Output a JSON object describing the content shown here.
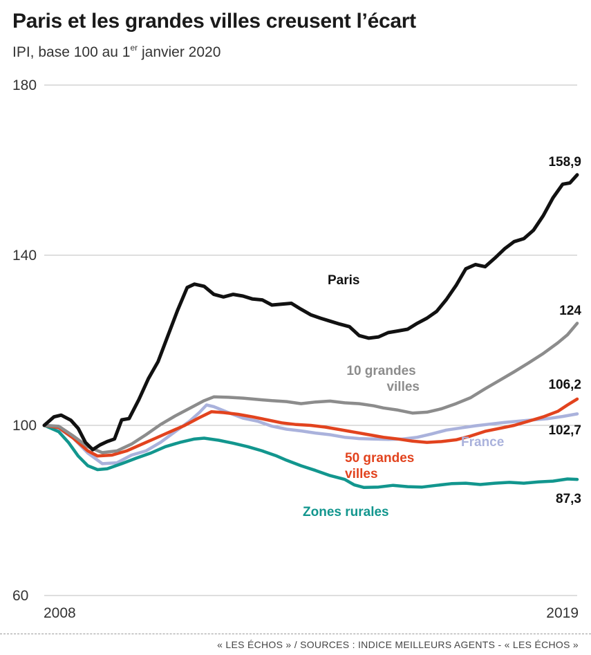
{
  "title": "Paris et les grandes villes creusent l’écart",
  "subtitle": {
    "main": "IPI, base 100 au 1",
    "sup": "er",
    "rest": " janvier 2020"
  },
  "source": "« LES ÉCHOS » / SOURCES : INDICE MEILLEURS AGENTS - « LES ÉCHOS »",
  "chart_data": {
    "type": "line",
    "title": "Paris et les grandes villes creusent l’écart",
    "ylabel": "IPI, base 100",
    "xlabel": "",
    "ylim": [
      60,
      180
    ],
    "yticks": [
      "60",
      "100",
      "140",
      "180"
    ],
    "xlim": [
      2008,
      2019
    ],
    "xticks": [
      "2008",
      "2019"
    ],
    "grid": true,
    "colors": {
      "paris": "#111111",
      "dix": "#8c8c8c",
      "cinquante": "#e2431e",
      "france": "#aab2dc",
      "rurales": "#12968e"
    },
    "series": [
      {
        "id": "france",
        "name": "France",
        "end_label": "102,7",
        "points": [
          [
            2008,
            100
          ],
          [
            2008.3,
            99.3
          ],
          [
            2008.6,
            97
          ],
          [
            2008.9,
            93.5
          ],
          [
            2009.2,
            91
          ],
          [
            2009.5,
            91.2
          ],
          [
            2009.8,
            93
          ],
          [
            2010.1,
            94
          ],
          [
            2010.4,
            96
          ],
          [
            2010.7,
            98.5
          ],
          [
            2011.0,
            101
          ],
          [
            2011.2,
            103
          ],
          [
            2011.35,
            104.8
          ],
          [
            2011.5,
            104.4
          ],
          [
            2011.8,
            103
          ],
          [
            2012.1,
            101.7
          ],
          [
            2012.4,
            101
          ],
          [
            2012.7,
            99.8
          ],
          [
            2013.0,
            99.1
          ],
          [
            2013.3,
            98.7
          ],
          [
            2013.6,
            98.2
          ],
          [
            2013.9,
            97.8
          ],
          [
            2014.2,
            97.2
          ],
          [
            2014.5,
            96.9
          ],
          [
            2014.8,
            96.8
          ],
          [
            2015.1,
            96.7
          ],
          [
            2015.4,
            96.8
          ],
          [
            2015.7,
            97.2
          ],
          [
            2016.0,
            98
          ],
          [
            2016.3,
            98.9
          ],
          [
            2016.6,
            99.4
          ],
          [
            2016.9,
            99.9
          ],
          [
            2017.2,
            100.3
          ],
          [
            2017.5,
            100.7
          ],
          [
            2017.8,
            101
          ],
          [
            2018.1,
            101.3
          ],
          [
            2018.4,
            101.6
          ],
          [
            2018.7,
            102.1
          ],
          [
            2019,
            102.7
          ]
        ]
      },
      {
        "id": "rurales",
        "name": "Zones rurales",
        "end_label": "87,3",
        "points": [
          [
            2008,
            100
          ],
          [
            2008.3,
            98.5
          ],
          [
            2008.5,
            96
          ],
          [
            2008.7,
            92.8
          ],
          [
            2008.9,
            90.5
          ],
          [
            2009.1,
            89.6
          ],
          [
            2009.3,
            89.8
          ],
          [
            2009.6,
            91
          ],
          [
            2009.9,
            92.3
          ],
          [
            2010.2,
            93.5
          ],
          [
            2010.5,
            95
          ],
          [
            2010.8,
            96
          ],
          [
            2011.1,
            96.8
          ],
          [
            2011.3,
            97
          ],
          [
            2011.6,
            96.5
          ],
          [
            2011.9,
            95.8
          ],
          [
            2012.2,
            95
          ],
          [
            2012.5,
            94
          ],
          [
            2012.8,
            92.8
          ],
          [
            2013.0,
            91.8
          ],
          [
            2013.3,
            90.5
          ],
          [
            2013.6,
            89.4
          ],
          [
            2013.9,
            88.2
          ],
          [
            2014.2,
            87.3
          ],
          [
            2014.4,
            86
          ],
          [
            2014.6,
            85.4
          ],
          [
            2014.9,
            85.5
          ],
          [
            2015.2,
            85.9
          ],
          [
            2015.5,
            85.6
          ],
          [
            2015.8,
            85.5
          ],
          [
            2016.1,
            85.9
          ],
          [
            2016.4,
            86.3
          ],
          [
            2016.7,
            86.4
          ],
          [
            2017.0,
            86.1
          ],
          [
            2017.3,
            86.4
          ],
          [
            2017.6,
            86.6
          ],
          [
            2017.9,
            86.4
          ],
          [
            2018.2,
            86.7
          ],
          [
            2018.5,
            86.9
          ],
          [
            2018.8,
            87.4
          ],
          [
            2019,
            87.3
          ]
        ]
      },
      {
        "id": "cinquante",
        "name": "50 grandes villes",
        "end_label": "106,2",
        "points": [
          [
            2008,
            100
          ],
          [
            2008.3,
            99.5
          ],
          [
            2008.6,
            97
          ],
          [
            2008.9,
            94
          ],
          [
            2009.1,
            92.8
          ],
          [
            2009.4,
            93
          ],
          [
            2009.7,
            94
          ],
          [
            2010.0,
            95.5
          ],
          [
            2010.3,
            97
          ],
          [
            2010.6,
            98.5
          ],
          [
            2010.9,
            100
          ],
          [
            2011.2,
            101.8
          ],
          [
            2011.45,
            103.2
          ],
          [
            2011.7,
            103
          ],
          [
            2012.0,
            102.6
          ],
          [
            2012.3,
            102
          ],
          [
            2012.6,
            101.3
          ],
          [
            2012.9,
            100.6
          ],
          [
            2013.2,
            100.2
          ],
          [
            2013.5,
            100
          ],
          [
            2013.8,
            99.6
          ],
          [
            2014.1,
            99
          ],
          [
            2014.4,
            98.4
          ],
          [
            2014.7,
            97.8
          ],
          [
            2015.0,
            97.2
          ],
          [
            2015.3,
            96.8
          ],
          [
            2015.6,
            96.3
          ],
          [
            2015.9,
            96
          ],
          [
            2016.2,
            96.2
          ],
          [
            2016.5,
            96.6
          ],
          [
            2016.8,
            97.5
          ],
          [
            2017.1,
            98.6
          ],
          [
            2017.4,
            99.3
          ],
          [
            2017.7,
            100
          ],
          [
            2018.0,
            101
          ],
          [
            2018.3,
            102
          ],
          [
            2018.6,
            103.3
          ],
          [
            2018.8,
            104.8
          ],
          [
            2019,
            106.2
          ]
        ]
      },
      {
        "id": "dix",
        "name": "10 grandes villes",
        "end_label": "124",
        "points": [
          [
            2008,
            100
          ],
          [
            2008.3,
            99.8
          ],
          [
            2008.6,
            97.5
          ],
          [
            2008.9,
            95
          ],
          [
            2009.2,
            93.6
          ],
          [
            2009.5,
            94
          ],
          [
            2009.8,
            95.6
          ],
          [
            2010.1,
            97.8
          ],
          [
            2010.4,
            100.2
          ],
          [
            2010.7,
            102.2
          ],
          [
            2011.0,
            104
          ],
          [
            2011.3,
            105.8
          ],
          [
            2011.5,
            106.7
          ],
          [
            2011.8,
            106.6
          ],
          [
            2012.1,
            106.4
          ],
          [
            2012.4,
            106.1
          ],
          [
            2012.7,
            105.8
          ],
          [
            2013.0,
            105.6
          ],
          [
            2013.3,
            105.1
          ],
          [
            2013.6,
            105.5
          ],
          [
            2013.9,
            105.7
          ],
          [
            2014.2,
            105.3
          ],
          [
            2014.5,
            105.1
          ],
          [
            2014.8,
            104.6
          ],
          [
            2015.0,
            104.1
          ],
          [
            2015.3,
            103.6
          ],
          [
            2015.6,
            102.9
          ],
          [
            2015.9,
            103.1
          ],
          [
            2016.2,
            103.9
          ],
          [
            2016.5,
            105.1
          ],
          [
            2016.8,
            106.5
          ],
          [
            2017.1,
            108.6
          ],
          [
            2017.4,
            110.6
          ],
          [
            2017.7,
            112.6
          ],
          [
            2018.0,
            114.7
          ],
          [
            2018.3,
            116.9
          ],
          [
            2018.6,
            119.4
          ],
          [
            2018.8,
            121.3
          ],
          [
            2019,
            124
          ]
        ]
      },
      {
        "id": "paris",
        "name": "Paris",
        "end_label": "158,9",
        "points": [
          [
            2008,
            100
          ],
          [
            2008.2,
            102
          ],
          [
            2008.35,
            102.4
          ],
          [
            2008.55,
            101.2
          ],
          [
            2008.7,
            99.3
          ],
          [
            2008.85,
            96
          ],
          [
            2009.0,
            94.3
          ],
          [
            2009.15,
            95.4
          ],
          [
            2009.3,
            96.2
          ],
          [
            2009.45,
            96.8
          ],
          [
            2009.6,
            101.3
          ],
          [
            2009.75,
            101.6
          ],
          [
            2009.95,
            106
          ],
          [
            2010.15,
            111
          ],
          [
            2010.35,
            115
          ],
          [
            2010.55,
            121
          ],
          [
            2010.75,
            127
          ],
          [
            2010.95,
            132.4
          ],
          [
            2011.1,
            133.2
          ],
          [
            2011.3,
            132.7
          ],
          [
            2011.5,
            130.8
          ],
          [
            2011.7,
            130.2
          ],
          [
            2011.9,
            130.8
          ],
          [
            2012.1,
            130.4
          ],
          [
            2012.3,
            129.7
          ],
          [
            2012.5,
            129.5
          ],
          [
            2012.7,
            128.3
          ],
          [
            2012.9,
            128.5
          ],
          [
            2013.1,
            128.7
          ],
          [
            2013.3,
            127.3
          ],
          [
            2013.5,
            126
          ],
          [
            2013.7,
            125.2
          ],
          [
            2013.9,
            124.5
          ],
          [
            2014.1,
            123.8
          ],
          [
            2014.3,
            123.2
          ],
          [
            2014.5,
            121.1
          ],
          [
            2014.7,
            120.5
          ],
          [
            2014.9,
            120.8
          ],
          [
            2015.1,
            121.8
          ],
          [
            2015.3,
            122.2
          ],
          [
            2015.5,
            122.6
          ],
          [
            2015.7,
            124
          ],
          [
            2015.9,
            125.2
          ],
          [
            2016.1,
            126.8
          ],
          [
            2016.3,
            129.6
          ],
          [
            2016.5,
            132.9
          ],
          [
            2016.7,
            136.8
          ],
          [
            2016.9,
            137.8
          ],
          [
            2017.1,
            137.3
          ],
          [
            2017.3,
            139.3
          ],
          [
            2017.5,
            141.5
          ],
          [
            2017.7,
            143.2
          ],
          [
            2017.9,
            143.9
          ],
          [
            2018.1,
            145.9
          ],
          [
            2018.3,
            149.3
          ],
          [
            2018.5,
            153.5
          ],
          [
            2018.7,
            156.7
          ],
          [
            2018.85,
            157
          ],
          [
            2019,
            158.9
          ]
        ]
      }
    ],
    "labels": [
      {
        "series": "paris",
        "text": "Paris"
      },
      {
        "series": "dix",
        "line1": "10 grandes",
        "line2": "villes"
      },
      {
        "series": "france",
        "text": "France"
      },
      {
        "series": "cinquante",
        "line1": "50 grandes",
        "line2": "villes"
      },
      {
        "series": "rurales",
        "text": "Zones rurales"
      }
    ]
  }
}
